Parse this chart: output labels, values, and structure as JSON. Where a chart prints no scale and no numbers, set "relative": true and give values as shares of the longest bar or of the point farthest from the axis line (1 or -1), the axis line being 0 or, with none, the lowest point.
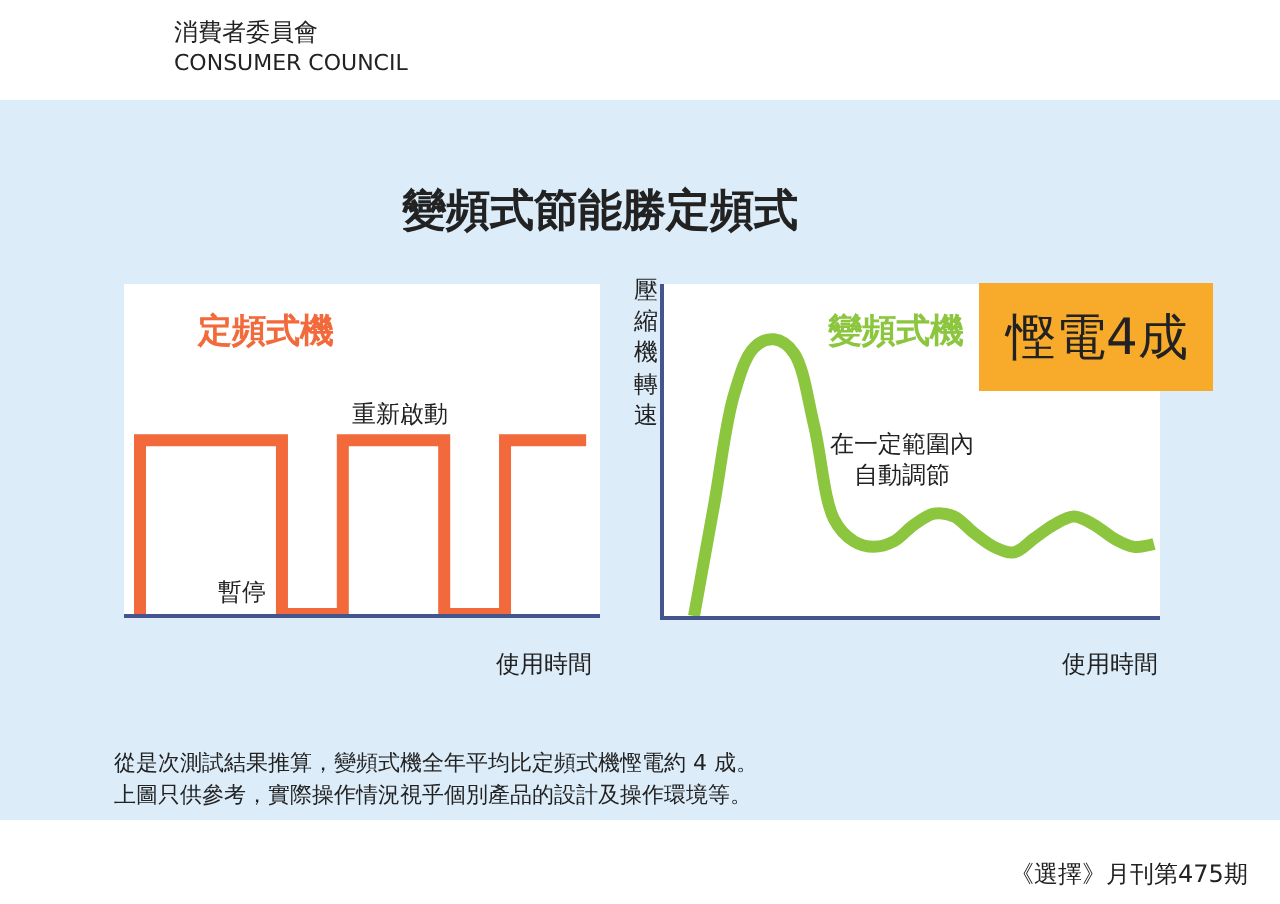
{
  "chart_data": [
    {
      "type": "step",
      "relative": true,
      "title": "變頻式節能勝定頻式",
      "xlabel": "使用時間",
      "categories": [
        null,
        null,
        null,
        null,
        null,
        null,
        null,
        null,
        null,
        null,
        null,
        null,
        null,
        null,
        null,
        null,
        null,
        null,
        null,
        null,
        null,
        null,
        null
      ],
      "series": [
        {
          "name": "定頻式機",
          "color": "#f26a3b",
          "values": [
            0,
            1,
            1,
            1,
            1,
            1,
            1,
            1,
            0,
            0,
            0,
            1,
            1,
            1,
            1,
            1,
            0,
            0,
            0,
            1,
            1,
            1,
            1
          ]
        }
      ],
      "annotations": [
        "消費者委員會",
        "CONSUMER COUNCIL",
        "重新啟動",
        "暫停"
      ]
    },
    {
      "type": "line",
      "relative": true,
      "xlabel": "使用時間",
      "ylabel": "壓縮機轉速",
      "categories": [
        null,
        null,
        null,
        null,
        null,
        null,
        null,
        null,
        null,
        null,
        null,
        null,
        null,
        null,
        null,
        null,
        null,
        null,
        null,
        null,
        null,
        null,
        null,
        null
      ],
      "series": [
        {
          "name": "變頻式機",
          "color": "#8cc63f",
          "values": [
            0,
            0.4,
            0.8,
            0.97,
            1.0,
            0.95,
            0.69,
            0.35,
            0.27,
            0.25,
            0.27,
            0.33,
            0.37,
            0.36,
            0.3,
            0.25,
            0.23,
            0.28,
            0.33,
            0.36,
            0.33,
            0.28,
            0.25,
            0.26
          ]
        }
      ],
      "annotations": [
        "在一定範圍內自動調節",
        "慳電4成",
        "從是次測試結果推算，變頻式機全年平均比定頻式機慳電約 4 成。",
        "上圖只供參考，實際操作情況視乎個別產品的設計及操作環境等。",
        "《選擇》月刊第475期"
      ]
    }
  ]
}
